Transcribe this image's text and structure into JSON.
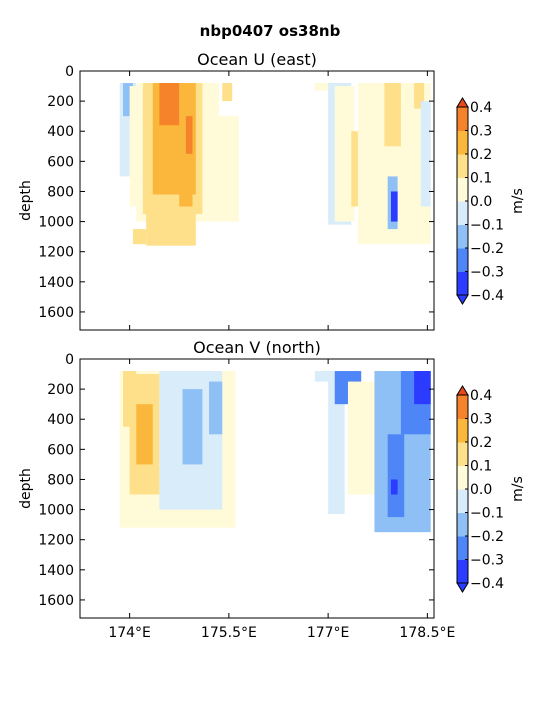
{
  "figure_title": "nbp0407 os38nb",
  "chart_data": [
    {
      "type": "heatmap",
      "title": "Ocean U (east)",
      "xlabel": "",
      "ylabel": "depth",
      "xlim": [
        173.25,
        178.6
      ],
      "ylim": [
        1720,
        0
      ],
      "x_ticks": [
        174.0,
        175.5,
        177.0,
        178.5
      ],
      "x_tick_labels": [
        "174°E",
        "175.5°E",
        "177°E",
        "178.5°E"
      ],
      "x_tick_labels_visible": false,
      "y_ticks": [
        0,
        200,
        400,
        600,
        800,
        1000,
        1200,
        1400,
        1600
      ],
      "y_tick_labels": [
        "0",
        "200",
        "400",
        "600",
        "800",
        "1000",
        "1200",
        "1400",
        "1600"
      ],
      "colorbar": {
        "label": "m/s",
        "levels": [
          -0.4,
          -0.3,
          -0.2,
          -0.1,
          0.0,
          0.1,
          0.2,
          0.3,
          0.4
        ],
        "tick_labels": [
          "−0.4",
          "−0.3",
          "−0.2",
          "−0.1",
          "0.0",
          "0.1",
          "0.2",
          "0.3",
          "0.4"
        ],
        "colors": [
          "#2b3bff",
          "#4f86f7",
          "#8ec0f5",
          "#d9ecfa",
          "#fffbd8",
          "#fde089",
          "#fbb73c",
          "#f6822a",
          "#e8491a"
        ],
        "extend": "both"
      },
      "regions": [
        {
          "x": [
            173.85,
            174.1
          ],
          "depth": [
            80,
            700
          ],
          "value": -0.05
        },
        {
          "x": [
            173.9,
            174.05
          ],
          "depth": [
            80,
            300
          ],
          "value": -0.15
        },
        {
          "x": [
            174.0,
            174.15
          ],
          "depth": [
            100,
            900
          ],
          "value": 0.05
        },
        {
          "x": [
            174.05,
            174.25
          ],
          "depth": [
            1050,
            1150
          ],
          "value": 0.15
        },
        {
          "x": [
            174.1,
            175.35
          ],
          "depth": [
            80,
            1000
          ],
          "value": 0.05
        },
        {
          "x": [
            174.25,
            175.0
          ],
          "depth": [
            500,
            1160
          ],
          "value": 0.15
        },
        {
          "x": [
            174.2,
            175.1
          ],
          "depth": [
            80,
            950
          ],
          "value": 0.15
        },
        {
          "x": [
            174.35,
            175.0
          ],
          "depth": [
            80,
            820
          ],
          "value": 0.25
        },
        {
          "x": [
            174.4,
            174.95
          ],
          "depth": [
            80,
            600
          ],
          "value": 0.25
        },
        {
          "x": [
            174.45,
            174.75
          ],
          "depth": [
            80,
            360
          ],
          "value": 0.35
        },
        {
          "x": [
            174.75,
            174.95
          ],
          "depth": [
            100,
            900
          ],
          "value": 0.25
        },
        {
          "x": [
            174.85,
            174.95
          ],
          "depth": [
            300,
            550
          ],
          "value": 0.35
        },
        {
          "x": [
            175.4,
            175.55
          ],
          "depth": [
            80,
            200
          ],
          "value": 0.15
        },
        {
          "x": [
            175.3,
            175.65
          ],
          "depth": [
            300,
            1000
          ],
          "value": 0.05
        },
        {
          "x": [
            176.8,
            177.1
          ],
          "depth": [
            80,
            130
          ],
          "value": 0.05
        },
        {
          "x": [
            177.0,
            177.35
          ],
          "depth": [
            80,
            1020
          ],
          "value": -0.05
        },
        {
          "x": [
            177.1,
            177.4
          ],
          "depth": [
            100,
            1000
          ],
          "value": 0.05
        },
        {
          "x": [
            177.35,
            177.5
          ],
          "depth": [
            400,
            900
          ],
          "value": 0.15
        },
        {
          "x": [
            177.45,
            178.55
          ],
          "depth": [
            80,
            1150
          ],
          "value": 0.05
        },
        {
          "x": [
            177.9,
            178.05
          ],
          "depth": [
            700,
            1050
          ],
          "value": -0.15
        },
        {
          "x": [
            177.95,
            178.05
          ],
          "depth": [
            800,
            1000
          ],
          "value": -0.35
        },
        {
          "x": [
            177.85,
            178.1
          ],
          "depth": [
            80,
            500
          ],
          "value": 0.15
        },
        {
          "x": [
            178.3,
            178.45
          ],
          "depth": [
            80,
            250
          ],
          "value": 0.15
        },
        {
          "x": [
            178.4,
            178.55
          ],
          "depth": [
            200,
            900
          ],
          "value": -0.05
        }
      ]
    },
    {
      "type": "heatmap",
      "title": "Ocean V (north)",
      "xlabel": "",
      "ylabel": "depth",
      "xlim": [
        173.25,
        178.6
      ],
      "ylim": [
        1720,
        0
      ],
      "x_ticks": [
        174.0,
        175.5,
        177.0,
        178.5
      ],
      "x_tick_labels": [
        "174°E",
        "175.5°E",
        "177°E",
        "178.5°E"
      ],
      "x_tick_labels_visible": true,
      "y_ticks": [
        0,
        200,
        400,
        600,
        800,
        1000,
        1200,
        1400,
        1600
      ],
      "y_tick_labels": [
        "0",
        "200",
        "400",
        "600",
        "800",
        "1000",
        "1200",
        "1400",
        "1600"
      ],
      "colorbar": {
        "label": "m/s",
        "levels": [
          -0.4,
          -0.3,
          -0.2,
          -0.1,
          0.0,
          0.1,
          0.2,
          0.3,
          0.4
        ],
        "tick_labels": [
          "−0.4",
          "−0.3",
          "−0.2",
          "−0.1",
          "0.0",
          "0.1",
          "0.2",
          "0.3",
          "0.4"
        ],
        "colors": [
          "#2b3bff",
          "#4f86f7",
          "#8ec0f5",
          "#d9ecfa",
          "#fffbd8",
          "#fde089",
          "#fbb73c",
          "#f6822a",
          "#e8491a"
        ],
        "extend": "both"
      },
      "regions": [
        {
          "x": [
            173.85,
            175.6
          ],
          "depth": [
            80,
            1120
          ],
          "value": 0.05
        },
        {
          "x": [
            173.9,
            174.1
          ],
          "depth": [
            80,
            450
          ],
          "value": 0.15
        },
        {
          "x": [
            174.0,
            174.45
          ],
          "depth": [
            100,
            900
          ],
          "value": 0.15
        },
        {
          "x": [
            174.1,
            174.35
          ],
          "depth": [
            300,
            700
          ],
          "value": 0.25
        },
        {
          "x": [
            174.45,
            175.4
          ],
          "depth": [
            80,
            1000
          ],
          "value": -0.05
        },
        {
          "x": [
            174.8,
            175.1
          ],
          "depth": [
            200,
            700
          ],
          "value": -0.15
        },
        {
          "x": [
            175.2,
            175.4
          ],
          "depth": [
            150,
            500
          ],
          "value": -0.15
        },
        {
          "x": [
            176.8,
            177.05
          ],
          "depth": [
            80,
            150
          ],
          "value": -0.05
        },
        {
          "x": [
            177.0,
            177.25
          ],
          "depth": [
            80,
            1030
          ],
          "value": -0.05
        },
        {
          "x": [
            177.1,
            177.5
          ],
          "depth": [
            80,
            300
          ],
          "value": -0.25
        },
        {
          "x": [
            177.3,
            177.7
          ],
          "depth": [
            150,
            900
          ],
          "value": 0.05
        },
        {
          "x": [
            177.7,
            178.55
          ],
          "depth": [
            80,
            1150
          ],
          "value": -0.15
        },
        {
          "x": [
            177.9,
            178.15
          ],
          "depth": [
            500,
            1050
          ],
          "value": -0.25
        },
        {
          "x": [
            177.95,
            178.05
          ],
          "depth": [
            800,
            900
          ],
          "value": -0.35
        },
        {
          "x": [
            178.1,
            178.55
          ],
          "depth": [
            80,
            500
          ],
          "value": -0.25
        },
        {
          "x": [
            178.3,
            178.55
          ],
          "depth": [
            80,
            300
          ],
          "value": -0.35
        },
        {
          "x": [
            178.35,
            178.5
          ],
          "depth": [
            80,
            150
          ],
          "value": -0.45
        }
      ]
    }
  ]
}
